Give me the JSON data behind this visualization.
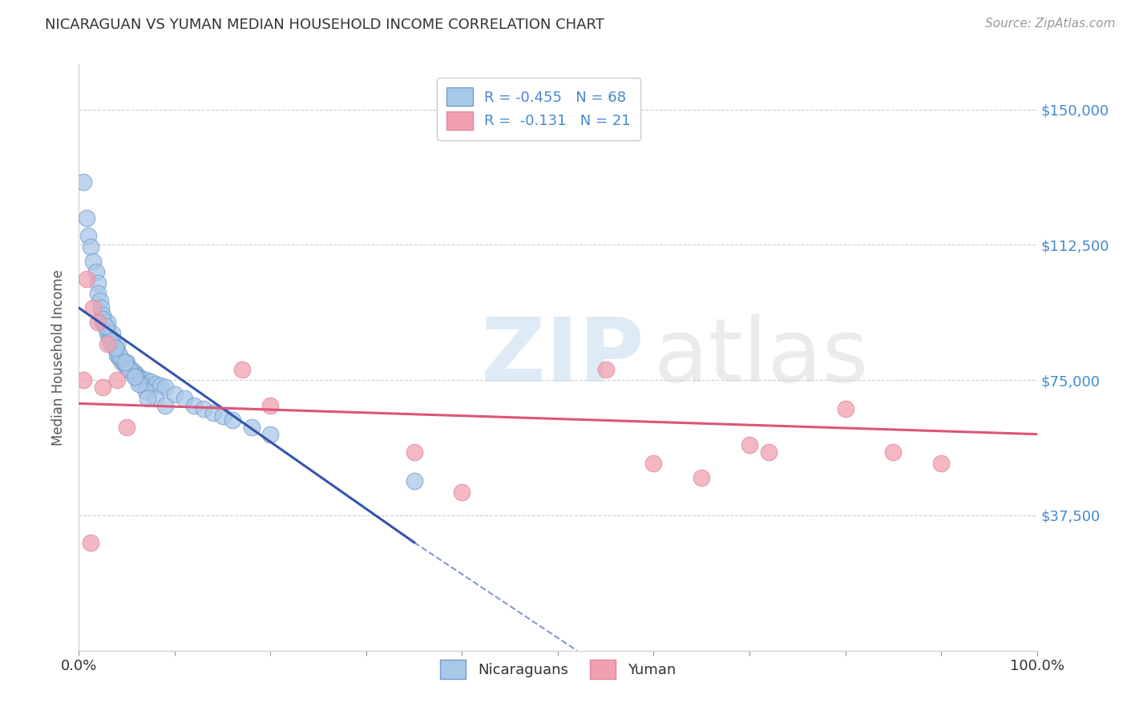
{
  "title": "NICARAGUAN VS YUMAN MEDIAN HOUSEHOLD INCOME CORRELATION CHART",
  "source": "Source: ZipAtlas.com",
  "ylabel": "Median Household Income",
  "xlim": [
    0,
    100
  ],
  "ylim": [
    0,
    162500
  ],
  "yticks": [
    37500,
    75000,
    112500,
    150000
  ],
  "ytick_labels": [
    "$37,500",
    "$75,000",
    "$112,500",
    "$150,000"
  ],
  "xtick_positions": [
    0,
    10,
    20,
    30,
    40,
    50,
    60,
    70,
    80,
    90,
    100
  ],
  "background_color": "#ffffff",
  "grid_color": "#cccccc",
  "blue_color": "#a8c8e8",
  "pink_color": "#f0a0b0",
  "blue_edge": "#7799cc",
  "pink_edge": "#dd8899",
  "trend_blue": "#3355aa",
  "trend_pink": "#dd5577",
  "blue_scatter_x": [
    0.5,
    0.8,
    1.0,
    1.2,
    1.5,
    1.8,
    2.0,
    2.0,
    2.2,
    2.3,
    2.5,
    2.5,
    2.8,
    3.0,
    3.0,
    3.2,
    3.5,
    3.5,
    3.8,
    4.0,
    4.0,
    4.2,
    4.5,
    4.5,
    4.8,
    5.0,
    5.0,
    5.2,
    5.5,
    5.8,
    6.0,
    6.0,
    6.5,
    7.0,
    7.5,
    8.0,
    8.5,
    9.0,
    10.0,
    11.0,
    12.0,
    13.0,
    14.0,
    15.0,
    16.0,
    18.0,
    20.0,
    3.0,
    3.5,
    4.0,
    5.0,
    5.5,
    6.0,
    6.5,
    7.0,
    8.0,
    9.0,
    3.2,
    4.2,
    5.2,
    6.2,
    7.2,
    3.8,
    4.8,
    5.8,
    2.5,
    2.8,
    35.0
  ],
  "blue_scatter_y": [
    130000,
    120000,
    115000,
    112000,
    108000,
    105000,
    102000,
    99000,
    97000,
    95000,
    93000,
    91000,
    90000,
    89000,
    88000,
    87000,
    86000,
    85000,
    84000,
    83000,
    82000,
    81000,
    80500,
    80000,
    79500,
    79000,
    78500,
    78000,
    77500,
    77000,
    76500,
    76000,
    75500,
    75000,
    74500,
    74000,
    73500,
    73000,
    71000,
    70000,
    68000,
    67000,
    66000,
    65000,
    64000,
    62000,
    60000,
    91000,
    88000,
    85000,
    80000,
    78000,
    76000,
    74000,
    72000,
    70000,
    68000,
    86000,
    82000,
    78000,
    74000,
    70000,
    84000,
    80000,
    76000,
    92000,
    90000,
    47000
  ],
  "pink_scatter_x": [
    0.8,
    1.5,
    2.0,
    3.0,
    4.0,
    17.0,
    20.0,
    35.0,
    55.0,
    60.0,
    65.0,
    72.0,
    80.0,
    85.0,
    90.0,
    0.5,
    2.5,
    40.0,
    70.0,
    5.0,
    1.2
  ],
  "pink_scatter_y": [
    103000,
    95000,
    91000,
    85000,
    75000,
    78000,
    68000,
    55000,
    78000,
    52000,
    48000,
    55000,
    67000,
    55000,
    52000,
    75000,
    73000,
    44000,
    57000,
    62000,
    30000
  ],
  "blue_trend_x0": 0,
  "blue_trend_y0": 95000,
  "blue_trend_x1": 35,
  "blue_trend_y1": 30000,
  "blue_dash_x0": 35,
  "blue_dash_y0": 30000,
  "blue_dash_x1": 52,
  "blue_dash_y1": 0,
  "pink_trend_x0": 0,
  "pink_trend_y0": 68500,
  "pink_trend_x1": 100,
  "pink_trend_y1": 60000,
  "legend_blue_label": "R = -0.455   N = 68",
  "legend_pink_label": "R =  -0.131   N = 21",
  "legend_blue_label2": "Nicaraguans",
  "legend_pink_label2": "Yuman",
  "title_fontsize": 13,
  "source_fontsize": 11,
  "tick_fontsize": 13,
  "legend_fontsize": 13,
  "ylabel_fontsize": 12
}
